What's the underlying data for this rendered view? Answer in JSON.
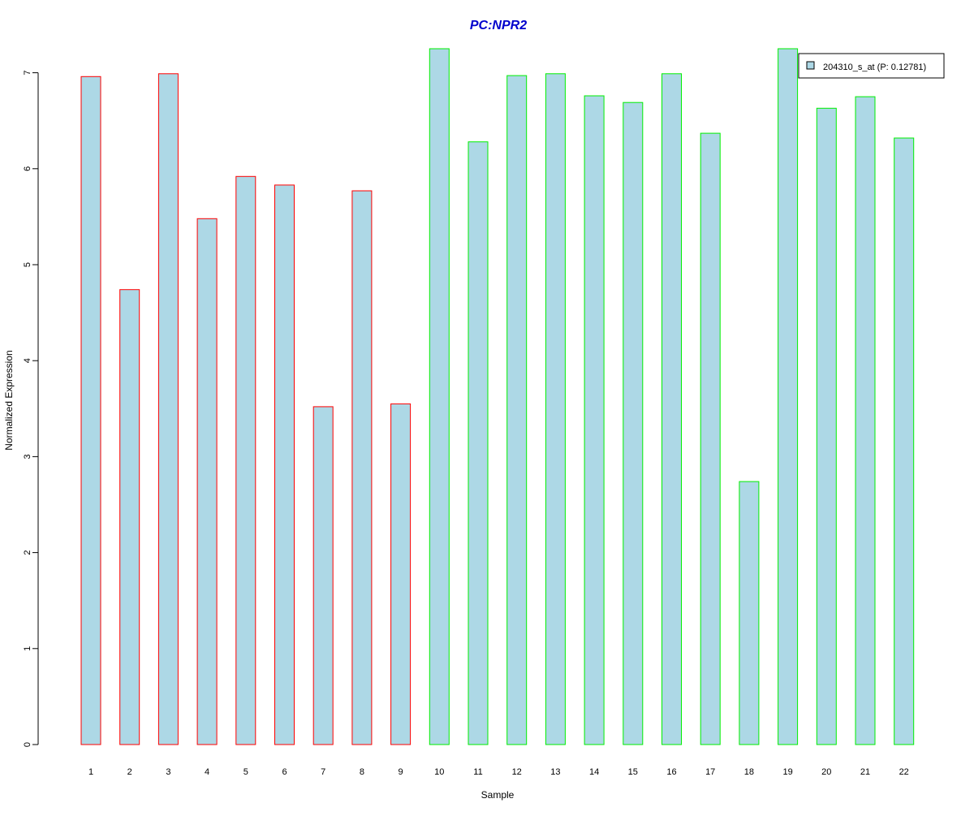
{
  "chart_data": {
    "type": "bar",
    "title": "PC:NPR2",
    "xlabel": "Sample",
    "ylabel": "Normalized Expression",
    "categories": [
      "1",
      "2",
      "3",
      "4",
      "5",
      "6",
      "7",
      "8",
      "9",
      "10",
      "11",
      "12",
      "13",
      "14",
      "15",
      "16",
      "17",
      "18",
      "19",
      "20",
      "21",
      "22"
    ],
    "series": [
      {
        "name": "204310_s_at (P: 0.12781)",
        "values": [
          6.96,
          4.74,
          6.99,
          5.48,
          5.92,
          5.83,
          3.52,
          5.77,
          3.55,
          7.25,
          6.28,
          6.97,
          6.99,
          6.76,
          6.69,
          6.99,
          6.37,
          2.74,
          7.25,
          6.63,
          6.75,
          6.32
        ]
      }
    ],
    "group_edge_colors": [
      "#ff0000",
      "#ff0000",
      "#ff0000",
      "#ff0000",
      "#ff0000",
      "#ff0000",
      "#ff0000",
      "#ff0000",
      "#ff0000",
      "#00ee00",
      "#00ee00",
      "#00ee00",
      "#00ee00",
      "#00ee00",
      "#00ee00",
      "#00ee00",
      "#00ee00",
      "#00ee00",
      "#00ee00",
      "#00ee00",
      "#00ee00",
      "#00ee00"
    ],
    "yticks": [
      0,
      1,
      2,
      3,
      4,
      5,
      6,
      7
    ],
    "ylim": [
      0,
      7.25
    ],
    "grid": false,
    "legend_position": "top-right"
  },
  "colors": {
    "bar_fill": "#add8e6",
    "title": "#0000cd",
    "axis": "#000000"
  }
}
